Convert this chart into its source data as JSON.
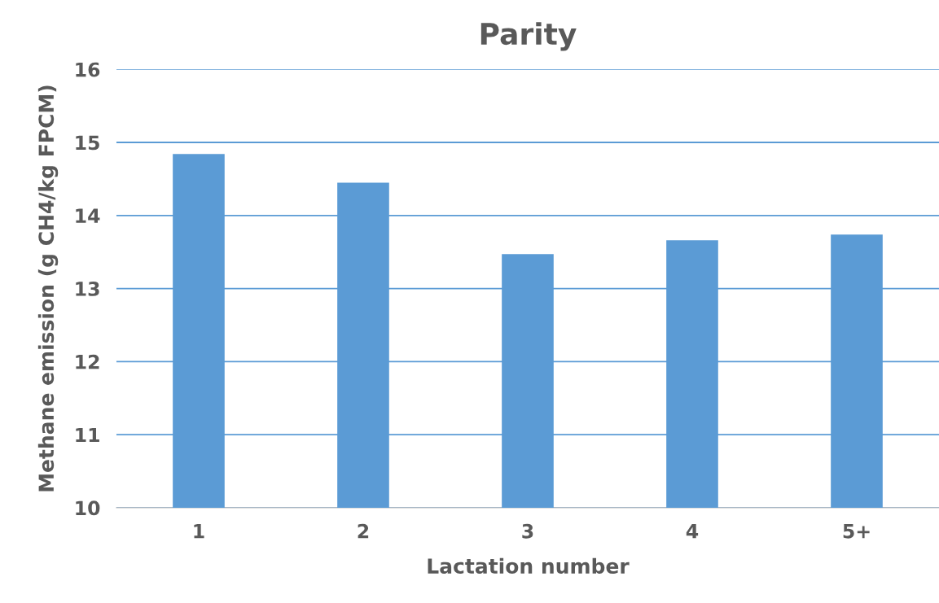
{
  "chart_data": {
    "type": "bar",
    "title": "Parity",
    "xlabel": "Lactation number",
    "ylabel": "Methane emission (g CH4/kg FPCM)",
    "categories": [
      "1",
      "2",
      "3",
      "4",
      "5+"
    ],
    "values": [
      14.84,
      14.45,
      13.47,
      13.66,
      13.74
    ],
    "color": "#5b9bd5",
    "ylim": [
      10,
      16
    ],
    "yticks": [
      10,
      11,
      12,
      13,
      14,
      15,
      16
    ],
    "grid": "y"
  }
}
